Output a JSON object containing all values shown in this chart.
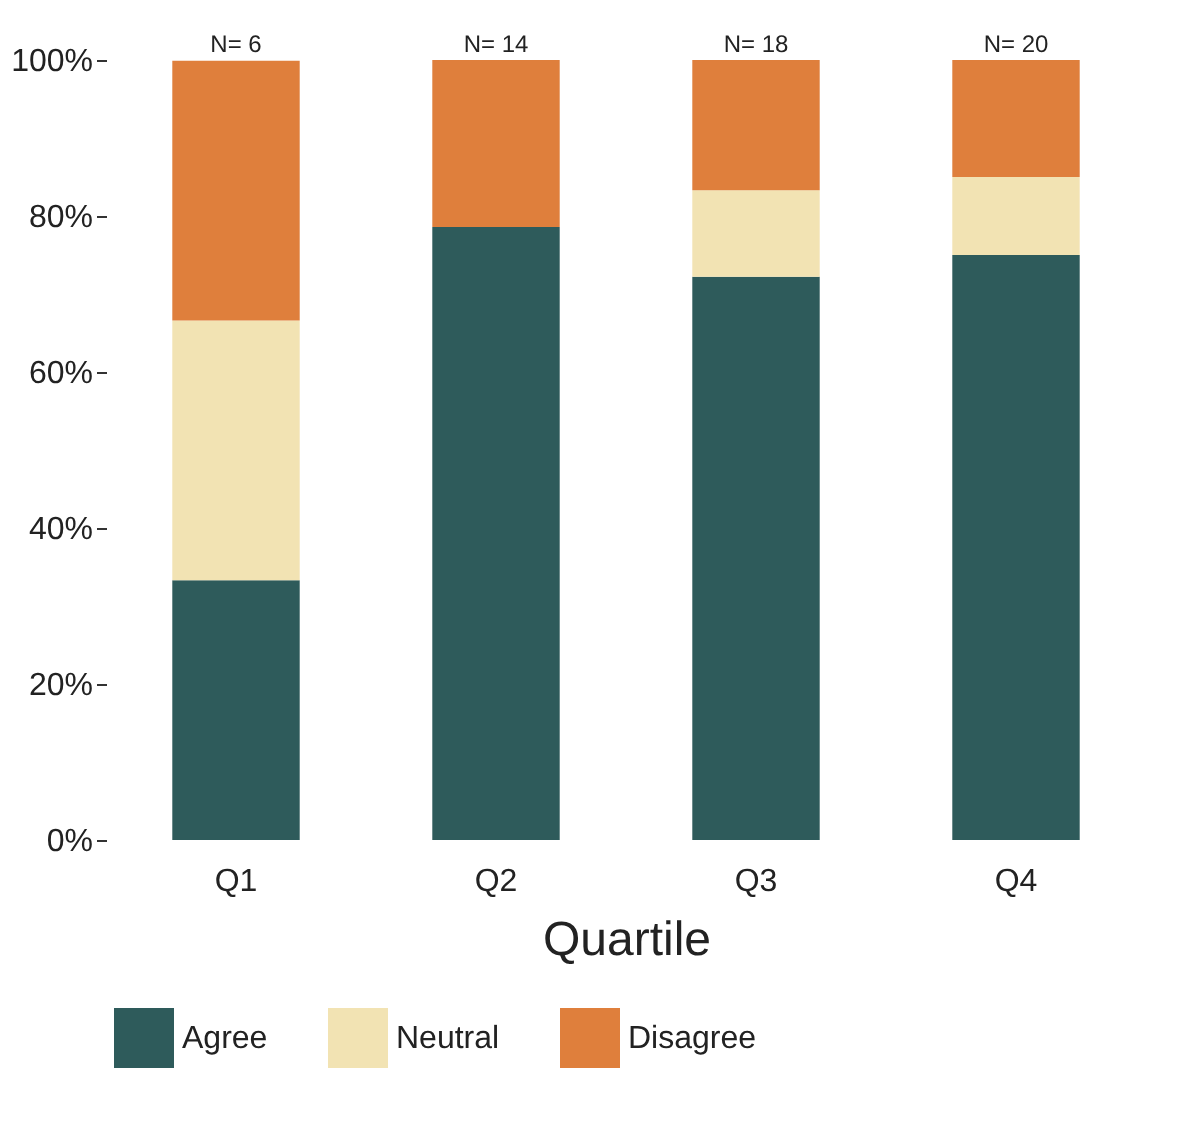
{
  "chart_data": {
    "type": "bar",
    "stacked": true,
    "xlabel": "Quartile",
    "categories": [
      "Q1",
      "Q2",
      "Q3",
      "Q4"
    ],
    "series": [
      {
        "name": "Agree",
        "color": "#2e5b5b",
        "values": [
          33.3,
          78.6,
          72.2,
          75
        ]
      },
      {
        "name": "Neutral",
        "color": "#f2e3b3",
        "values": [
          33.3,
          0,
          11.1,
          10
        ]
      },
      {
        "name": "Disagree",
        "color": "#df7f3c",
        "values": [
          33.3,
          21.4,
          16.7,
          15
        ]
      }
    ],
    "ylim": [
      0,
      100
    ],
    "yticks": [
      {
        "value": 0,
        "label": "0%"
      },
      {
        "value": 20,
        "label": "20%"
      },
      {
        "value": 40,
        "label": "40%"
      },
      {
        "value": 60,
        "label": "60%"
      },
      {
        "value": 80,
        "label": "80%"
      },
      {
        "value": 100,
        "label": "100%"
      }
    ],
    "annotations": [
      {
        "text": "N= 6",
        "x": "Q1",
        "y": 100
      },
      {
        "text": "N= 14",
        "x": "Q2",
        "y": 100
      },
      {
        "text": "N= 18",
        "x": "Q3",
        "y": 100
      },
      {
        "text": "N= 20",
        "x": "Q4",
        "y": 100
      }
    ],
    "grid": false,
    "legend": "bottom"
  }
}
